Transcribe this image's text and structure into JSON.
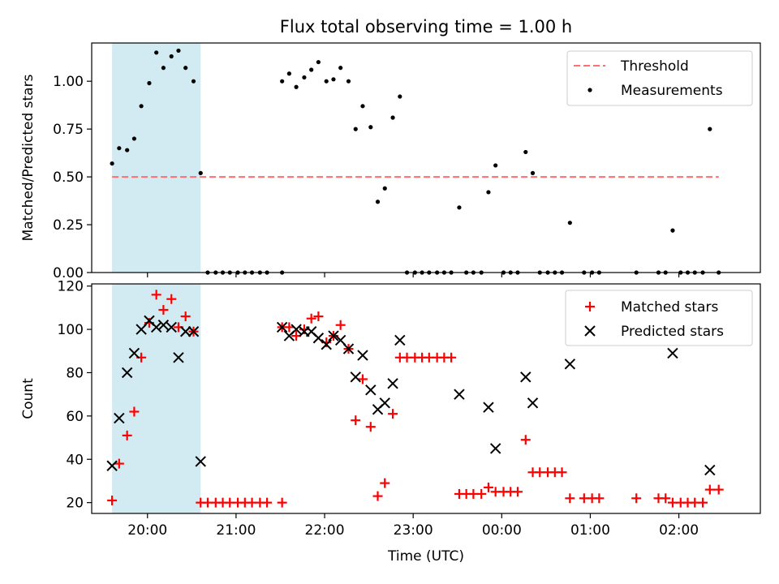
{
  "figure": {
    "title": "Flux total observing time = 1.00 h",
    "xlabel": "Time (UTC)"
  },
  "colors": {
    "threshold": "#ff6f6f",
    "measurement": "#000000",
    "matched": "#ff0000",
    "predicted": "#000000",
    "span": "#add8e6"
  },
  "chart_data": [
    {
      "type": "scatter",
      "title": "Flux total observing time = 1.00 h",
      "xlabel": "",
      "ylabel": "Matched/Predicted stars",
      "xlim": [
        19.37,
        26.92
      ],
      "ylim": [
        0,
        1.2
      ],
      "x_ticks": [
        {
          "v": 20,
          "label": "20:00"
        },
        {
          "v": 21,
          "label": "21:00"
        },
        {
          "v": 22,
          "label": "22:00"
        },
        {
          "v": 23,
          "label": "23:00"
        },
        {
          "v": 24,
          "label": "00:00"
        },
        {
          "v": 25,
          "label": "01:00"
        },
        {
          "v": 26,
          "label": "02:00"
        }
      ],
      "y_ticks": [
        {
          "v": 0,
          "label": "0.00"
        },
        {
          "v": 0.25,
          "label": "0.25"
        },
        {
          "v": 0.5,
          "label": "0.50"
        },
        {
          "v": 0.75,
          "label": "0.75"
        },
        {
          "v": 1.0,
          "label": "1.00"
        }
      ],
      "span": [
        19.6,
        20.6
      ],
      "legend_position": "top-right",
      "threshold": {
        "name": "Threshold",
        "value": 0.5,
        "x_range": [
          19.6,
          26.45
        ]
      },
      "series": [
        {
          "name": "Measurements",
          "points": [
            [
              19.6,
              0.57
            ],
            [
              19.68,
              0.65
            ],
            [
              19.77,
              0.64
            ],
            [
              19.85,
              0.7
            ],
            [
              19.93,
              0.87
            ],
            [
              20.02,
              0.99
            ],
            [
              20.1,
              1.15
            ],
            [
              20.18,
              1.07
            ],
            [
              20.27,
              1.13
            ],
            [
              20.35,
              1.16
            ],
            [
              20.43,
              1.07
            ],
            [
              20.52,
              1.0
            ],
            [
              20.6,
              0.52
            ],
            [
              20.68,
              0
            ],
            [
              20.77,
              0
            ],
            [
              20.85,
              0
            ],
            [
              20.93,
              0
            ],
            [
              21.02,
              0
            ],
            [
              21.1,
              0
            ],
            [
              21.18,
              0
            ],
            [
              21.27,
              0
            ],
            [
              21.35,
              0
            ],
            [
              21.52,
              0
            ],
            [
              21.52,
              1.0
            ],
            [
              21.6,
              1.04
            ],
            [
              21.68,
              0.97
            ],
            [
              21.77,
              1.02
            ],
            [
              21.85,
              1.06
            ],
            [
              21.93,
              1.1
            ],
            [
              22.02,
              1.0
            ],
            [
              22.1,
              1.01
            ],
            [
              22.18,
              1.07
            ],
            [
              22.27,
              1.0
            ],
            [
              22.35,
              0.75
            ],
            [
              22.43,
              0.87
            ],
            [
              22.52,
              0.76
            ],
            [
              22.6,
              0.37
            ],
            [
              22.68,
              0.44
            ],
            [
              22.77,
              0.81
            ],
            [
              22.85,
              0.92
            ],
            [
              22.93,
              0
            ],
            [
              23.02,
              0
            ],
            [
              23.1,
              0
            ],
            [
              23.18,
              0
            ],
            [
              23.27,
              0
            ],
            [
              23.35,
              0
            ],
            [
              23.43,
              0
            ],
            [
              23.52,
              0.34
            ],
            [
              23.6,
              0
            ],
            [
              23.68,
              0
            ],
            [
              23.77,
              0
            ],
            [
              23.85,
              0.42
            ],
            [
              23.93,
              0.56
            ],
            [
              24.02,
              0
            ],
            [
              24.1,
              0
            ],
            [
              24.18,
              0
            ],
            [
              24.27,
              0.63
            ],
            [
              24.35,
              0.52
            ],
            [
              24.43,
              0
            ],
            [
              24.52,
              0
            ],
            [
              24.6,
              0
            ],
            [
              24.68,
              0
            ],
            [
              24.77,
              0.26
            ],
            [
              24.93,
              0
            ],
            [
              25.02,
              0
            ],
            [
              25.1,
              0
            ],
            [
              25.52,
              0
            ],
            [
              25.77,
              0
            ],
            [
              25.85,
              0
            ],
            [
              25.93,
              0.22
            ],
            [
              26.02,
              0
            ],
            [
              26.1,
              0
            ],
            [
              26.18,
              0
            ],
            [
              26.27,
              0
            ],
            [
              26.35,
              0.75
            ],
            [
              26.45,
              0
            ]
          ]
        }
      ]
    },
    {
      "type": "scatter",
      "xlabel": "Time (UTC)",
      "ylabel": "Count",
      "xlim": [
        19.37,
        26.92
      ],
      "ylim": [
        15,
        121
      ],
      "x_ticks": [
        {
          "v": 20,
          "label": "20:00"
        },
        {
          "v": 21,
          "label": "21:00"
        },
        {
          "v": 22,
          "label": "22:00"
        },
        {
          "v": 23,
          "label": "23:00"
        },
        {
          "v": 24,
          "label": "00:00"
        },
        {
          "v": 25,
          "label": "01:00"
        },
        {
          "v": 26,
          "label": "02:00"
        }
      ],
      "y_ticks": [
        {
          "v": 20,
          "label": "20"
        },
        {
          "v": 40,
          "label": "40"
        },
        {
          "v": 60,
          "label": "60"
        },
        {
          "v": 80,
          "label": "80"
        },
        {
          "v": 100,
          "label": "100"
        },
        {
          "v": 120,
          "label": "120"
        }
      ],
      "span": [
        19.6,
        20.6
      ],
      "legend_position": "top-right",
      "series": [
        {
          "name": "Matched stars",
          "marker": "plus",
          "points": [
            [
              19.6,
              21
            ],
            [
              19.68,
              38
            ],
            [
              19.77,
              51
            ],
            [
              19.85,
              62
            ],
            [
              19.93,
              87
            ],
            [
              20.02,
              103
            ],
            [
              20.1,
              116
            ],
            [
              20.18,
              109
            ],
            [
              20.27,
              114
            ],
            [
              20.35,
              101
            ],
            [
              20.43,
              106
            ],
            [
              20.52,
              99
            ],
            [
              20.6,
              20
            ],
            [
              20.68,
              20
            ],
            [
              20.77,
              20
            ],
            [
              20.85,
              20
            ],
            [
              20.93,
              20
            ],
            [
              21.02,
              20
            ],
            [
              21.1,
              20
            ],
            [
              21.18,
              20
            ],
            [
              21.27,
              20
            ],
            [
              21.35,
              20
            ],
            [
              21.52,
              20
            ],
            [
              21.52,
              101
            ],
            [
              21.6,
              101
            ],
            [
              21.68,
              97
            ],
            [
              21.77,
              100
            ],
            [
              21.85,
              105
            ],
            [
              21.93,
              106
            ],
            [
              22.02,
              94
            ],
            [
              22.1,
              97
            ],
            [
              22.18,
              102
            ],
            [
              22.27,
              91
            ],
            [
              22.35,
              58
            ],
            [
              22.43,
              77
            ],
            [
              22.52,
              55
            ],
            [
              22.6,
              23
            ],
            [
              22.68,
              29
            ],
            [
              22.77,
              61
            ],
            [
              22.85,
              87
            ],
            [
              22.93,
              87
            ],
            [
              23.02,
              87
            ],
            [
              23.1,
              87
            ],
            [
              23.18,
              87
            ],
            [
              23.27,
              87
            ],
            [
              23.35,
              87
            ],
            [
              23.43,
              87
            ],
            [
              23.52,
              24
            ],
            [
              23.6,
              24
            ],
            [
              23.68,
              24
            ],
            [
              23.77,
              24
            ],
            [
              23.85,
              27
            ],
            [
              23.93,
              25
            ],
            [
              24.02,
              25
            ],
            [
              24.1,
              25
            ],
            [
              24.18,
              25
            ],
            [
              24.27,
              49
            ],
            [
              24.35,
              34
            ],
            [
              24.43,
              34
            ],
            [
              24.52,
              34
            ],
            [
              24.6,
              34
            ],
            [
              24.68,
              34
            ],
            [
              24.77,
              22
            ],
            [
              24.93,
              22
            ],
            [
              25.02,
              22
            ],
            [
              25.1,
              22
            ],
            [
              25.52,
              22
            ],
            [
              25.77,
              22
            ],
            [
              25.85,
              22
            ],
            [
              25.93,
              20
            ],
            [
              26.02,
              20
            ],
            [
              26.1,
              20
            ],
            [
              26.18,
              20
            ],
            [
              26.27,
              20
            ],
            [
              26.35,
              26
            ],
            [
              26.45,
              26
            ]
          ]
        },
        {
          "name": "Predicted stars",
          "marker": "x",
          "points": [
            [
              19.6,
              37
            ],
            [
              19.68,
              59
            ],
            [
              19.77,
              80
            ],
            [
              19.85,
              89
            ],
            [
              19.93,
              100
            ],
            [
              20.02,
              104
            ],
            [
              20.1,
              101
            ],
            [
              20.18,
              102
            ],
            [
              20.27,
              101
            ],
            [
              20.35,
              87
            ],
            [
              20.43,
              99
            ],
            [
              20.52,
              99
            ],
            [
              20.6,
              39
            ],
            [
              21.52,
              101
            ],
            [
              21.6,
              97
            ],
            [
              21.68,
              100
            ],
            [
              21.77,
              99
            ],
            [
              21.85,
              99
            ],
            [
              21.93,
              96
            ],
            [
              22.02,
              93
            ],
            [
              22.1,
              97
            ],
            [
              22.18,
              95
            ],
            [
              22.27,
              91
            ],
            [
              22.35,
              78
            ],
            [
              22.43,
              88
            ],
            [
              22.52,
              72
            ],
            [
              22.6,
              63
            ],
            [
              22.68,
              66
            ],
            [
              22.77,
              75
            ],
            [
              22.85,
              95
            ],
            [
              23.52,
              70
            ],
            [
              23.85,
              64
            ],
            [
              23.93,
              45
            ],
            [
              24.27,
              78
            ],
            [
              24.35,
              66
            ],
            [
              24.77,
              84
            ],
            [
              25.93,
              89
            ],
            [
              26.35,
              35
            ]
          ]
        }
      ]
    }
  ]
}
